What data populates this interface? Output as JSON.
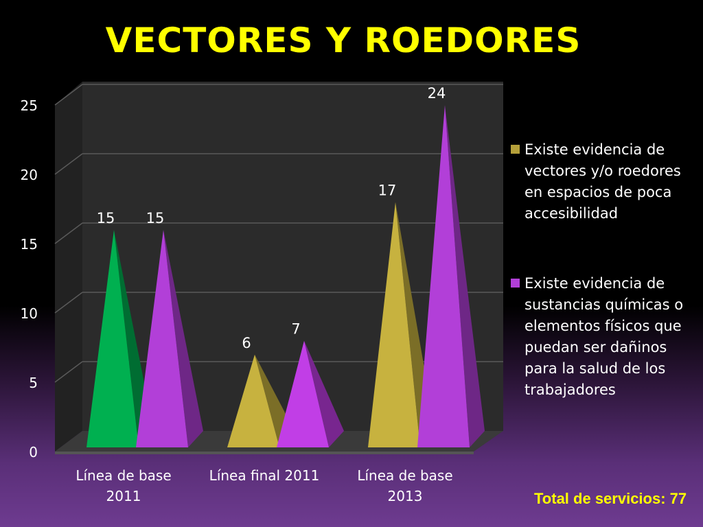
{
  "slide": {
    "title": "VECTORES Y ROEDORES",
    "footer_total": "Total de servicios: 77"
  },
  "chart_data": {
    "type": "bar",
    "style": "3d-pyramid",
    "categories": [
      [
        "Línea de base",
        "2011"
      ],
      [
        "Línea final 2011"
      ],
      [
        "Línea de base",
        "2013"
      ]
    ],
    "series": [
      {
        "name": "Existe evidencia de vectores y/o roedores en espacios de poca accesibilidad",
        "name_lines": [
          "Existe evidencia de",
          "vectores y/o roedores",
          "en espacios de poca",
          "accesibilidad"
        ],
        "values": [
          15,
          6,
          17
        ],
        "color": "#b5a03a",
        "point_colors": [
          "#00b050",
          "#c7b23f",
          "#c7b23f"
        ]
      },
      {
        "name": "Existe evidencia de sustancias químicas o elementos físicos que puedan ser dañinos para la salud de los trabajadores",
        "name_lines": [
          "Existe evidencia de",
          "sustancias químicas o",
          "elementos físicos que",
          "puedan ser dañinos",
          "para la salud de los",
          "trabajadores"
        ],
        "values": [
          15,
          7,
          24
        ],
        "color": "#b23fd8",
        "point_colors": [
          "#b23fd8",
          "#c13ee6",
          "#b23fd8"
        ]
      }
    ],
    "data_labels": [
      [
        "15",
        "6",
        "17"
      ],
      [
        "15",
        "7",
        "24"
      ]
    ],
    "y_ticks": [
      "0",
      "5",
      "10",
      "15",
      "20",
      "25"
    ],
    "ylim": [
      0,
      25
    ],
    "grid": true,
    "legend_position": "right"
  },
  "colors": {
    "title": "#ffff00",
    "text": "#ffffff",
    "footer": "#ffff00"
  }
}
